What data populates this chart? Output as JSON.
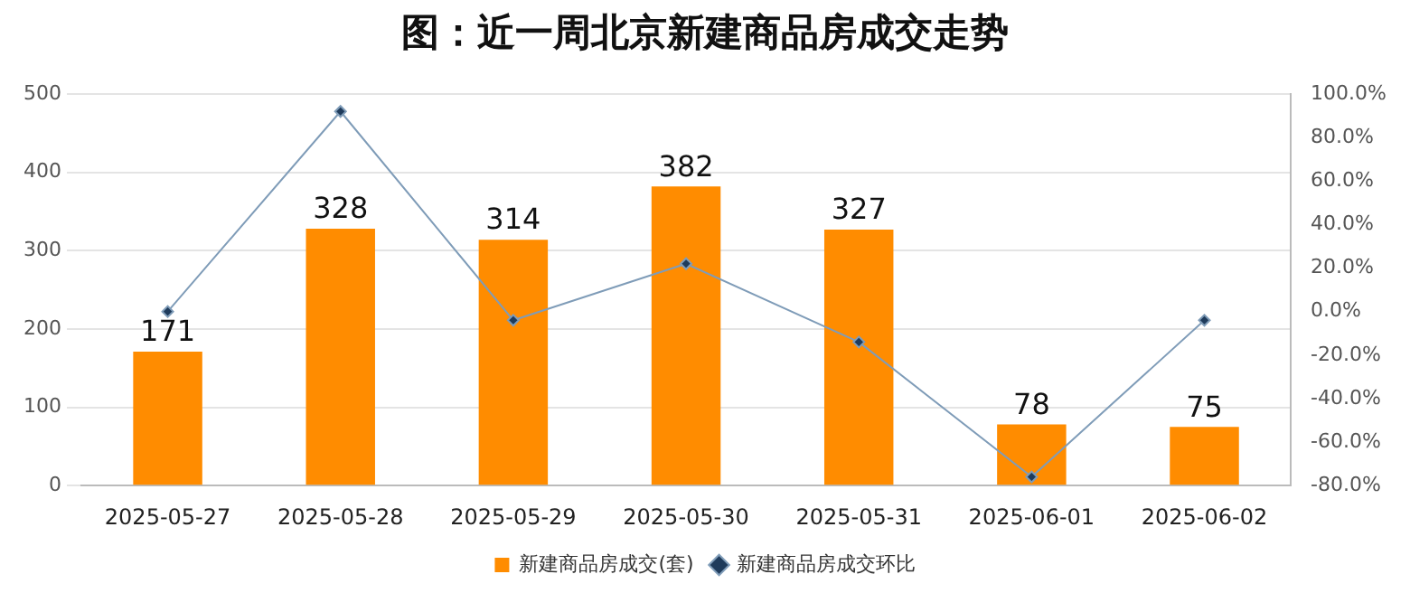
{
  "chart_data": {
    "type": "bar",
    "title": "图：近一周北京新建商品房成交走势",
    "categories": [
      "2025-05-27",
      "2025-05-28",
      "2025-05-29",
      "2025-05-30",
      "2025-05-31",
      "2025-06-01",
      "2025-06-02"
    ],
    "series": [
      {
        "name": "新建商品房成交(套)",
        "color": "#ff8c00",
        "values": [
          171,
          328,
          314,
          382,
          327,
          78,
          75
        ],
        "value_labels": [
          "171",
          "328",
          "314",
          "382",
          "327",
          "78",
          "75"
        ]
      },
      {
        "name": "新建商品房成交环比",
        "type": "line",
        "axis": "y2",
        "color": "#7f9cb8",
        "marker": "diamond",
        "values": [
          0,
          92,
          -4,
          22,
          -14,
          -76,
          -4
        ]
      }
    ],
    "ylim": [
      0,
      500
    ],
    "yticks": [
      0,
      100,
      200,
      300,
      400,
      500
    ],
    "y2lim": [
      -80,
      100
    ],
    "y2ticks": [
      {
        "value": -80,
        "label": "-80.0%"
      },
      {
        "value": -60,
        "label": "-60.0%"
      },
      {
        "value": -40,
        "label": "-40.0%"
      },
      {
        "value": -20,
        "label": "-20.0%"
      },
      {
        "value": 0,
        "label": "0.0%"
      },
      {
        "value": 20,
        "label": "20.0%"
      },
      {
        "value": 40,
        "label": "40.0%"
      },
      {
        "value": 60,
        "label": "60.0%"
      },
      {
        "value": 80,
        "label": "80.0%"
      },
      {
        "value": 100,
        "label": "100.0%"
      }
    ],
    "grid": "y",
    "legend": "bottom"
  }
}
